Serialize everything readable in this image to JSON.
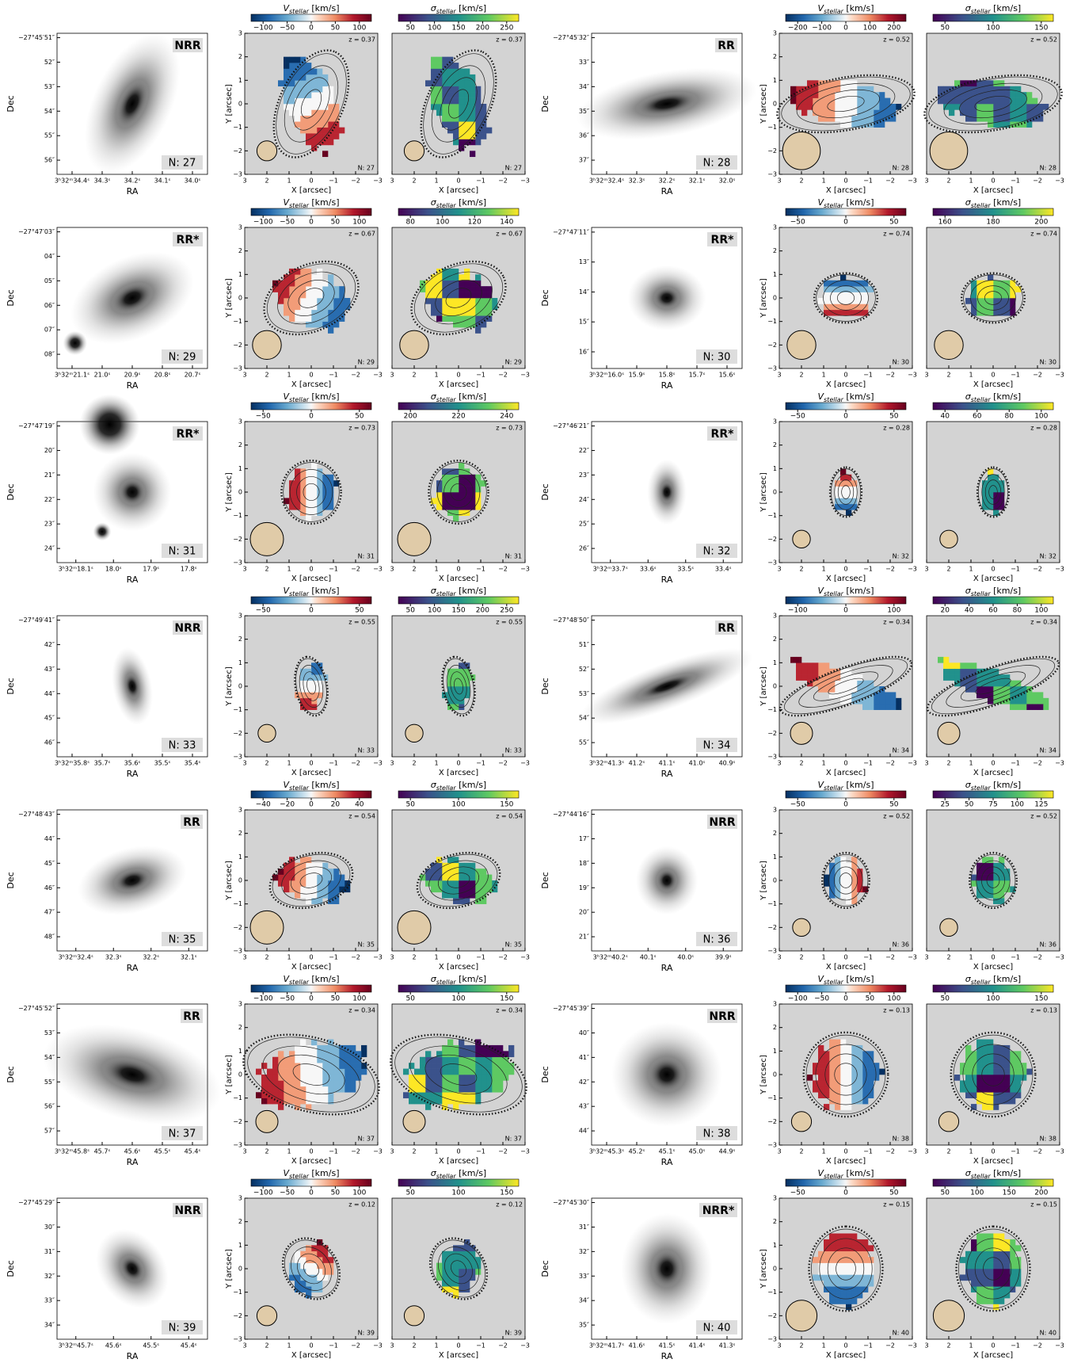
{
  "labels": {
    "dec": "Dec",
    "ra": "RA",
    "y": "Y [arcsec]",
    "x": "X [arcsec]",
    "v": "V",
    "v_sub": "stellar",
    "sigma": "σ",
    "units": " [km/s]"
  },
  "map_ticks": [
    "3",
    "2",
    "1",
    "0",
    "−1",
    "−2",
    "−3"
  ],
  "galaxies": [
    {
      "n": "N: 27",
      "cls": "NRR",
      "z": "z = 0.37",
      "ra": [
        "3ʰ32ᵐ34.4ˢ",
        "34.3ˢ",
        "34.2ˢ",
        "34.1ˢ",
        "34.0ˢ"
      ],
      "dec": [
        "−27°45′51″",
        "52″",
        "53″",
        "54″",
        "55″",
        "56″"
      ],
      "vticks": [
        "−100",
        "−50",
        "0",
        "50",
        "100"
      ],
      "sticks": [
        "50",
        "100",
        "150",
        "200",
        "250"
      ]
    },
    {
      "n": "N: 28",
      "cls": "RR",
      "z": "z = 0.52",
      "ra": [
        "3ʰ32ᵐ32.4ˢ",
        "32.3ˢ",
        "32.2ˢ",
        "32.1ˢ",
        "32.0ˢ"
      ],
      "dec": [
        "−27°45′32″",
        "33″",
        "34″",
        "35″",
        "36″",
        "37″"
      ],
      "vticks": [
        "−200",
        "−100",
        "0",
        "100",
        "200"
      ],
      "sticks": [
        "50",
        "100",
        "150"
      ]
    },
    {
      "n": "N: 29",
      "cls": "RR*",
      "z": "z = 0.67",
      "ra": [
        "3ʰ32ᵐ21.1ˢ",
        "21.0ˢ",
        "20.9ˢ",
        "20.8ˢ",
        "20.7ˢ"
      ],
      "dec": [
        "−27°47′03″",
        "04″",
        "05″",
        "06″",
        "07″",
        "08″"
      ],
      "vticks": [
        "−100",
        "−50",
        "0",
        "50",
        "100"
      ],
      "sticks": [
        "80",
        "100",
        "120",
        "140"
      ]
    },
    {
      "n": "N: 30",
      "cls": "RR*",
      "z": "z = 0.74",
      "ra": [
        "3ʰ32ᵐ16.0ˢ",
        "15.9ˢ",
        "15.8ˢ",
        "15.7ˢ",
        "15.6ˢ"
      ],
      "dec": [
        "−27°47′11″",
        "13″",
        "14″",
        "15″",
        "16″"
      ],
      "vticks": [
        "−50",
        "0",
        "50"
      ],
      "sticks": [
        "160",
        "180",
        "200"
      ]
    },
    {
      "n": "N: 31",
      "cls": "RR*",
      "z": "z = 0.73",
      "ra": [
        "3ʰ32ᵐ18.1ˢ",
        "18.0ˢ",
        "17.9ˢ",
        "17.8ˢ"
      ],
      "dec": [
        "−27°47′19″",
        "20″",
        "21″",
        "22″",
        "23″",
        "24″"
      ],
      "vticks": [
        "−50",
        "0",
        "50"
      ],
      "sticks": [
        "200",
        "220",
        "240"
      ]
    },
    {
      "n": "N: 32",
      "cls": "RR*",
      "z": "z = 0.28",
      "ra": [
        "3ʰ32ᵐ33.7ˢ",
        "33.6ˢ",
        "33.5ˢ",
        "33.4ˢ"
      ],
      "dec": [
        "−27°46′21″",
        "22″",
        "23″",
        "24″",
        "25″",
        "26″"
      ],
      "vticks": [
        "−50",
        "0",
        "50"
      ],
      "sticks": [
        "40",
        "60",
        "80",
        "100"
      ]
    },
    {
      "n": "N: 33",
      "cls": "NRR",
      "z": "z = 0.55",
      "ra": [
        "3ʰ32ᵐ35.8ˢ",
        "35.7ˢ",
        "35.6ˢ",
        "35.5ˢ",
        "35.4ˢ"
      ],
      "dec": [
        "−27°49′41″",
        "42″",
        "43″",
        "44″",
        "45″",
        "46″"
      ],
      "vticks": [
        "−50",
        "0",
        "50"
      ],
      "sticks": [
        "50",
        "100",
        "150",
        "200",
        "250"
      ]
    },
    {
      "n": "N: 34",
      "cls": "RR",
      "z": "z = 0.34",
      "ra": [
        "3ʰ32ᵐ41.3ˢ",
        "41.2ˢ",
        "41.1ˢ",
        "41.0ˢ",
        "40.9ˢ"
      ],
      "dec": [
        "−27°48′50″",
        "51″",
        "52″",
        "53″",
        "54″",
        "55″"
      ],
      "vticks": [
        "−100",
        "0",
        "100"
      ],
      "sticks": [
        "20",
        "40",
        "60",
        "80",
        "100"
      ]
    },
    {
      "n": "N: 35",
      "cls": "RR",
      "z": "z = 0.54",
      "ra": [
        "3ʰ32ᵐ32.4ˢ",
        "32.3ˢ",
        "32.2ˢ",
        "32.1ˢ"
      ],
      "dec": [
        "−27°48′43″",
        "44″",
        "45″",
        "46″",
        "47″",
        "48″"
      ],
      "vticks": [
        "−40",
        "−20",
        "0",
        "20",
        "40"
      ],
      "sticks": [
        "50",
        "100",
        "150"
      ]
    },
    {
      "n": "N: 36",
      "cls": "NRR",
      "z": "z = 0.52",
      "ra": [
        "3ʰ32ᵐ40.2ˢ",
        "40.1ˢ",
        "40.0ˢ",
        "39.9ˢ"
      ],
      "dec": [
        "−27°44′16″",
        "17″",
        "18″",
        "19″",
        "20″",
        "21″"
      ],
      "vticks": [
        "−50",
        "0",
        "50"
      ],
      "sticks": [
        "25",
        "50",
        "75",
        "100",
        "125"
      ]
    },
    {
      "n": "N: 37",
      "cls": "RR",
      "z": "z = 0.34",
      "ra": [
        "3ʰ32ᵐ45.8ˢ",
        "45.7ˢ",
        "45.6ˢ",
        "45.5ˢ",
        "45.4ˢ"
      ],
      "dec": [
        "−27°45′52″",
        "53″",
        "54″",
        "55″",
        "56″",
        "57″"
      ],
      "vticks": [
        "−100",
        "−50",
        "0",
        "50",
        "100"
      ],
      "sticks": [
        "50",
        "100",
        "150"
      ]
    },
    {
      "n": "N: 38",
      "cls": "NRR",
      "z": "z = 0.13",
      "ra": [
        "3ʰ32ᵐ45.3ˢ",
        "45.2ˢ",
        "45.1ˢ",
        "45.0ˢ",
        "44.9ˢ"
      ],
      "dec": [
        "−27°45′39″",
        "40″",
        "41″",
        "42″",
        "43″",
        "44″"
      ],
      "vticks": [
        "−100",
        "−50",
        "0",
        "50",
        "100"
      ],
      "sticks": [
        "50",
        "100",
        "150"
      ]
    },
    {
      "n": "N: 39",
      "cls": "NRR",
      "z": "z = 0.12",
      "ra": [
        "3ʰ32ᵐ45.7ˢ",
        "45.6ˢ",
        "45.5ˢ",
        "45.4ˢ"
      ],
      "dec": [
        "−27°45′29″",
        "30″",
        "31″",
        "32″",
        "33″",
        "34″"
      ],
      "vticks": [
        "−100",
        "−50",
        "0",
        "50",
        "100"
      ],
      "sticks": [
        "50",
        "100",
        "150"
      ]
    },
    {
      "n": "N: 40",
      "cls": "NRR*",
      "z": "z = 0.15",
      "ra": [
        "3ʰ32ᵐ41.7ˢ",
        "41.6ˢ",
        "41.5ˢ",
        "41.4ˢ",
        "41.3ˢ"
      ],
      "dec": [
        "−27°45′30″",
        "31″",
        "32″",
        "33″",
        "34″",
        "35″"
      ],
      "vticks": [
        "−50",
        "0",
        "50"
      ],
      "sticks": [
        "50",
        "100",
        "150",
        "200"
      ]
    }
  ]
}
